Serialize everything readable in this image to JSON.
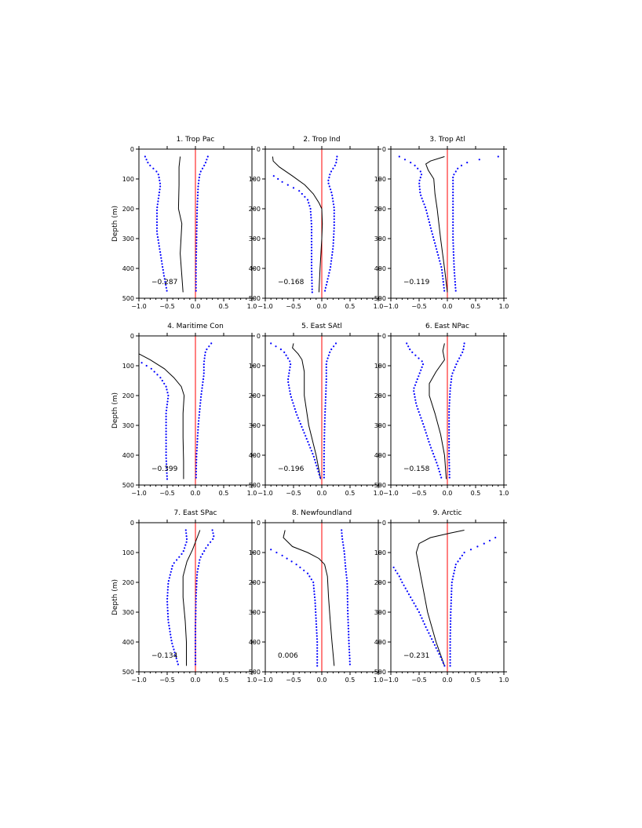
{
  "chart_data": [
    {
      "type": "line",
      "title": "1. Trop Pac",
      "ylabel": "Depth (m)",
      "xlim": [
        -1.0,
        1.0
      ],
      "ylim": [
        500,
        0
      ],
      "x_ticks": [
        "−1.0",
        "−0.5",
        "0.0",
        "0.5",
        "1.0"
      ],
      "y_ticks": [
        "0",
        "100",
        "200",
        "300",
        "400",
        "500"
      ],
      "annotation": "−0.287",
      "zero_line_color": "#ff0000",
      "series": [
        {
          "style": "solid",
          "color": "#000000",
          "depth": [
            25,
            60,
            120,
            200,
            250,
            350,
            450,
            480
          ],
          "values": [
            -0.27,
            -0.29,
            -0.29,
            -0.3,
            -0.24,
            -0.27,
            -0.23,
            -0.22
          ]
        },
        {
          "style": "dotted",
          "color": "#0000ff",
          "depth": [
            25,
            50,
            80,
            120,
            200,
            280,
            350,
            420,
            480
          ],
          "values": [
            -0.89,
            -0.83,
            -0.66,
            -0.62,
            -0.68,
            -0.68,
            -0.62,
            -0.56,
            -0.5
          ]
        },
        {
          "style": "dotted",
          "color": "#0000ff",
          "depth": [
            25,
            50,
            80,
            120,
            200,
            300,
            400,
            480
          ],
          "values": [
            0.22,
            0.17,
            0.08,
            0.05,
            0.03,
            0.02,
            0.01,
            0.01
          ]
        }
      ]
    },
    {
      "type": "line",
      "title": "2. Trop Ind",
      "ylabel": "",
      "xlim": [
        -1.0,
        1.0
      ],
      "ylim": [
        500,
        0
      ],
      "x_ticks": [
        "−1.0",
        "−0.5",
        "0.0",
        "0.5",
        "1.0"
      ],
      "y_ticks": [
        "0",
        "100",
        "200",
        "300",
        "400",
        "500"
      ],
      "annotation": "−0.168",
      "zero_line_color": "#ff0000",
      "series": [
        {
          "style": "solid",
          "color": "#000000",
          "depth": [
            25,
            40,
            60,
            90,
            120,
            150,
            180,
            200,
            250,
            300,
            400,
            480
          ],
          "values": [
            -0.87,
            -0.86,
            -0.75,
            -0.52,
            -0.3,
            -0.15,
            -0.05,
            0.0,
            0.01,
            0.0,
            -0.03,
            -0.05
          ]
        },
        {
          "style": "dotted",
          "color": "#0000ff",
          "depth": [
            90,
            110,
            140,
            170,
            200,
            260,
            330,
            400,
            480
          ],
          "values": [
            -0.85,
            -0.7,
            -0.4,
            -0.25,
            -0.2,
            -0.18,
            -0.18,
            -0.18,
            -0.17
          ]
        },
        {
          "style": "dotted",
          "color": "#0000ff",
          "depth": [
            25,
            50,
            80,
            110,
            150,
            200,
            260,
            330,
            400,
            480
          ],
          "values": [
            0.27,
            0.25,
            0.15,
            0.11,
            0.18,
            0.22,
            0.22,
            0.2,
            0.15,
            0.05
          ]
        }
      ]
    },
    {
      "type": "line",
      "title": "3. Trop Atl",
      "ylabel": "",
      "xlim": [
        -1.0,
        1.0
      ],
      "ylim": [
        500,
        0
      ],
      "x_ticks": [
        "−1.0",
        "−0.5",
        "0.0",
        "0.5",
        "1.0"
      ],
      "y_ticks": [
        "0",
        "100",
        "200",
        "300",
        "400",
        "500"
      ],
      "annotation": "−0.119",
      "zero_line_color": "#ff0000",
      "series": [
        {
          "style": "solid",
          "color": "#000000",
          "depth": [
            25,
            40,
            50,
            70,
            100,
            150,
            200,
            300,
            400,
            480
          ],
          "values": [
            -0.05,
            -0.3,
            -0.38,
            -0.34,
            -0.24,
            -0.22,
            -0.18,
            -0.12,
            -0.05,
            0.0
          ]
        },
        {
          "style": "dotted",
          "color": "#0000ff",
          "depth": [
            25,
            50,
            80,
            110,
            150,
            200,
            260,
            330,
            400,
            480
          ],
          "values": [
            -0.85,
            -0.6,
            -0.45,
            -0.5,
            -0.48,
            -0.38,
            -0.3,
            -0.2,
            -0.1,
            -0.05
          ]
        },
        {
          "style": "dotted",
          "color": "#0000ff",
          "depth": [
            25,
            40,
            60,
            90,
            130,
            200,
            300,
            400,
            480
          ],
          "values": [
            0.9,
            0.4,
            0.2,
            0.1,
            0.1,
            0.1,
            0.1,
            0.12,
            0.15
          ]
        }
      ]
    },
    {
      "type": "line",
      "title": "4. Maritime Con",
      "ylabel": "Depth (m)",
      "xlim": [
        -1.0,
        1.0
      ],
      "ylim": [
        500,
        0
      ],
      "x_ticks": [
        "−1.0",
        "−0.5",
        "0.0",
        "0.5",
        "1.0"
      ],
      "y_ticks": [
        "0",
        "100",
        "200",
        "300",
        "400",
        "500"
      ],
      "annotation": "−0.399",
      "zero_line_color": "#ff0000",
      "series": [
        {
          "style": "solid",
          "color": "#000000",
          "depth": [
            60,
            80,
            110,
            140,
            170,
            200,
            260,
            340,
            420,
            480
          ],
          "values": [
            -1.0,
            -0.8,
            -0.55,
            -0.38,
            -0.25,
            -0.2,
            -0.22,
            -0.22,
            -0.21,
            -0.21
          ]
        },
        {
          "style": "dotted",
          "color": "#0000ff",
          "depth": [
            90,
            110,
            140,
            170,
            200,
            260,
            330,
            400,
            480
          ],
          "values": [
            -0.95,
            -0.78,
            -0.62,
            -0.52,
            -0.48,
            -0.52,
            -0.52,
            -0.52,
            -0.5
          ]
        },
        {
          "style": "dotted",
          "color": "#0000ff",
          "depth": [
            25,
            50,
            90,
            130,
            200,
            300,
            400,
            480
          ],
          "values": [
            0.28,
            0.18,
            0.15,
            0.15,
            0.1,
            0.05,
            0.02,
            0.01
          ]
        }
      ]
    },
    {
      "type": "line",
      "title": "5. East SAtl",
      "ylabel": "",
      "xlim": [
        -1.0,
        1.0
      ],
      "ylim": [
        500,
        0
      ],
      "x_ticks": [
        "−1.0",
        "−0.5",
        "0.0",
        "0.5",
        "1.0"
      ],
      "y_ticks": [
        "0",
        "100",
        "200",
        "300",
        "400",
        "500"
      ],
      "annotation": "−0.196",
      "zero_line_color": "#ff0000",
      "series": [
        {
          "style": "solid",
          "color": "#000000",
          "depth": [
            25,
            40,
            60,
            80,
            120,
            200,
            300,
            400,
            480
          ],
          "values": [
            -0.5,
            -0.52,
            -0.42,
            -0.35,
            -0.31,
            -0.31,
            -0.23,
            -0.1,
            -0.02
          ]
        },
        {
          "style": "dotted",
          "color": "#0000ff",
          "depth": [
            25,
            50,
            90,
            150,
            200,
            260,
            330,
            400,
            480
          ],
          "values": [
            -0.9,
            -0.68,
            -0.55,
            -0.6,
            -0.55,
            -0.45,
            -0.3,
            -0.15,
            -0.02
          ]
        },
        {
          "style": "dotted",
          "color": "#0000ff",
          "depth": [
            25,
            50,
            90,
            150,
            200,
            300,
            400,
            480
          ],
          "values": [
            0.25,
            0.15,
            0.08,
            0.08,
            0.07,
            0.05,
            0.04,
            0.04
          ]
        }
      ]
    },
    {
      "type": "line",
      "title": "6. East NPac",
      "ylabel": "",
      "xlim": [
        -1.0,
        1.0
      ],
      "ylim": [
        500,
        0
      ],
      "x_ticks": [
        "−1.0",
        "−0.5",
        "0.0",
        "0.5",
        "1.0"
      ],
      "y_ticks": [
        "0",
        "100",
        "200",
        "300",
        "400",
        "500"
      ],
      "annotation": "−0.158",
      "zero_line_color": "#ff0000",
      "series": [
        {
          "style": "solid",
          "color": "#000000",
          "depth": [
            25,
            50,
            80,
            120,
            160,
            200,
            260,
            330,
            400,
            480
          ],
          "values": [
            -0.05,
            -0.08,
            -0.05,
            -0.2,
            -0.32,
            -0.32,
            -0.22,
            -0.12,
            -0.05,
            -0.02
          ]
        },
        {
          "style": "dotted",
          "color": "#0000ff",
          "depth": [
            25,
            50,
            90,
            130,
            180,
            230,
            300,
            370,
            430,
            480
          ],
          "values": [
            -0.72,
            -0.65,
            -0.42,
            -0.5,
            -0.6,
            -0.55,
            -0.42,
            -0.3,
            -0.18,
            -0.1
          ]
        },
        {
          "style": "dotted",
          "color": "#0000ff",
          "depth": [
            25,
            50,
            90,
            130,
            180,
            250,
            330,
            400,
            480
          ],
          "values": [
            0.3,
            0.28,
            0.17,
            0.08,
            0.05,
            0.03,
            0.03,
            0.03,
            0.04
          ]
        }
      ]
    },
    {
      "type": "line",
      "title": "7. East SPac",
      "ylabel": "Depth (m)",
      "xlim": [
        -1.0,
        1.0
      ],
      "ylim": [
        500,
        0
      ],
      "x_ticks": [
        "−1.0",
        "−0.5",
        "0.0",
        "0.5",
        "1.0"
      ],
      "y_ticks": [
        "0",
        "100",
        "200",
        "300",
        "400",
        "500"
      ],
      "annotation": "−0.134",
      "zero_line_color": "#ff0000",
      "series": [
        {
          "style": "solid",
          "color": "#000000",
          "depth": [
            25,
            50,
            90,
            130,
            180,
            250,
            330,
            400,
            480
          ],
          "values": [
            0.08,
            0.03,
            -0.05,
            -0.15,
            -0.22,
            -0.22,
            -0.18,
            -0.16,
            -0.16
          ]
        },
        {
          "style": "dotted",
          "color": "#0000ff",
          "depth": [
            25,
            60,
            100,
            140,
            200,
            260,
            330,
            400,
            480
          ],
          "values": [
            -0.17,
            -0.15,
            -0.22,
            -0.4,
            -0.48,
            -0.5,
            -0.48,
            -0.42,
            -0.3
          ]
        },
        {
          "style": "dotted",
          "color": "#0000ff",
          "depth": [
            25,
            50,
            80,
            120,
            170,
            250,
            350,
            480
          ],
          "values": [
            0.3,
            0.33,
            0.2,
            0.08,
            0.03,
            0.01,
            0.0,
            0.0
          ]
        }
      ]
    },
    {
      "type": "line",
      "title": "8. Newfoundland",
      "ylabel": "",
      "xlim": [
        -1.0,
        1.0
      ],
      "ylim": [
        500,
        0
      ],
      "x_ticks": [
        "−1.0",
        "−0.5",
        "0.0",
        "0.5",
        "1.0"
      ],
      "y_ticks": [
        "0",
        "100",
        "200",
        "300",
        "400",
        "500"
      ],
      "annotation": "0.006",
      "zero_line_color": "#ff0000",
      "series": [
        {
          "style": "solid",
          "color": "#000000",
          "depth": [
            25,
            50,
            80,
            100,
            120,
            140,
            180,
            250,
            330,
            400,
            480
          ],
          "values": [
            -0.65,
            -0.68,
            -0.52,
            -0.25,
            -0.05,
            0.05,
            0.1,
            0.12,
            0.15,
            0.18,
            0.22
          ]
        },
        {
          "style": "dotted",
          "color": "#0000ff",
          "depth": [
            90,
            110,
            140,
            170,
            200,
            260,
            330,
            400,
            480
          ],
          "values": [
            -0.9,
            -0.7,
            -0.45,
            -0.25,
            -0.15,
            -0.12,
            -0.1,
            -0.08,
            -0.08
          ]
        },
        {
          "style": "dotted",
          "color": "#0000ff",
          "depth": [
            25,
            50,
            100,
            150,
            200,
            300,
            400,
            480
          ],
          "values": [
            0.35,
            0.36,
            0.4,
            0.42,
            0.45,
            0.46,
            0.48,
            0.5
          ]
        }
      ]
    },
    {
      "type": "line",
      "title": "9. Arctic",
      "ylabel": "",
      "xlim": [
        -1.0,
        1.0
      ],
      "ylim": [
        500,
        0
      ],
      "x_ticks": [
        "−1.0",
        "−0.5",
        "0.0",
        "0.5",
        "1.0"
      ],
      "y_ticks": [
        "0",
        "100",
        "200",
        "300",
        "400",
        "500"
      ],
      "annotation": "−0.231",
      "zero_line_color": "#ff0000",
      "series": [
        {
          "style": "solid",
          "color": "#000000",
          "depth": [
            25,
            35,
            50,
            70,
            100,
            150,
            200,
            300,
            400,
            480
          ],
          "values": [
            0.3,
            0.05,
            -0.3,
            -0.5,
            -0.55,
            -0.5,
            -0.45,
            -0.35,
            -0.2,
            -0.05
          ]
        },
        {
          "style": "dotted",
          "color": "#0000ff",
          "depth": [
            150,
            180,
            200,
            250,
            300,
            350,
            400,
            450,
            480
          ],
          "values": [
            -0.95,
            -0.85,
            -0.8,
            -0.65,
            -0.5,
            -0.38,
            -0.25,
            -0.12,
            -0.05
          ]
        },
        {
          "style": "dotted",
          "color": "#0000ff",
          "depth": [
            50,
            70,
            100,
            140,
            200,
            300,
            400,
            480
          ],
          "values": [
            0.85,
            0.65,
            0.3,
            0.15,
            0.08,
            0.06,
            0.05,
            0.05
          ]
        }
      ]
    }
  ]
}
